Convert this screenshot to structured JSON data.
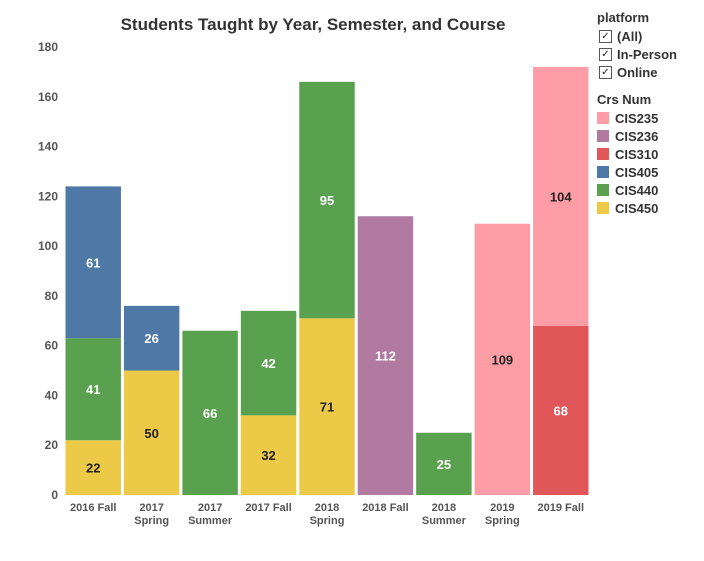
{
  "chart_data": {
    "type": "bar",
    "stacked": true,
    "title": "Students Taught by Year, Semester, and Course",
    "xlabel": "",
    "ylabel": "",
    "ylim": [
      0,
      180
    ],
    "yticks": [
      "0",
      "20",
      "40",
      "60",
      "80",
      "100",
      "120",
      "140",
      "160",
      "180"
    ],
    "categories": [
      [
        "2016 Fall"
      ],
      [
        "2017",
        "Spring"
      ],
      [
        "2017",
        "Summer"
      ],
      [
        "2017 Fall"
      ],
      [
        "2018",
        "Spring"
      ],
      [
        "2018 Fall"
      ],
      [
        "2018",
        "Summer"
      ],
      [
        "2019",
        "Spring"
      ],
      [
        "2019 Fall"
      ]
    ],
    "series": [
      {
        "name": "CIS450",
        "color": "#edc948",
        "label_color": "#222222",
        "values": [
          22,
          50,
          0,
          32,
          71,
          0,
          0,
          0,
          0
        ]
      },
      {
        "name": "CIS440",
        "color": "#59a14f",
        "label_color": "#ffffff",
        "values": [
          41,
          0,
          66,
          42,
          95,
          0,
          25,
          0,
          0
        ]
      },
      {
        "name": "CIS405",
        "color": "#4e79a7",
        "label_color": "#ffffff",
        "values": [
          61,
          26,
          0,
          0,
          0,
          0,
          0,
          0,
          0
        ]
      },
      {
        "name": "CIS236",
        "color": "#b07aa1",
        "label_color": "#ffffff",
        "values": [
          0,
          0,
          0,
          0,
          0,
          112,
          0,
          0,
          0
        ]
      },
      {
        "name": "CIS310",
        "color": "#e15759",
        "label_color": "#ffffff",
        "values": [
          0,
          0,
          0,
          0,
          0,
          0,
          0,
          0,
          68
        ]
      },
      {
        "name": "CIS235",
        "color": "#ff9da7",
        "label_color": "#222222",
        "values": [
          0,
          0,
          0,
          0,
          0,
          0,
          0,
          109,
          104
        ]
      }
    ]
  },
  "filter": {
    "title": "platform",
    "check_glyph": "✓",
    "options": [
      "(All)",
      "In-Person",
      "Online"
    ]
  },
  "legend": {
    "title": "Crs Num",
    "items": [
      {
        "name": "CIS235",
        "color": "#ff9da7"
      },
      {
        "name": "CIS236",
        "color": "#b07aa1"
      },
      {
        "name": "CIS310",
        "color": "#e15759"
      },
      {
        "name": "CIS405",
        "color": "#4e79a7"
      },
      {
        "name": "CIS440",
        "color": "#59a14f"
      },
      {
        "name": "CIS450",
        "color": "#edc948"
      }
    ]
  }
}
